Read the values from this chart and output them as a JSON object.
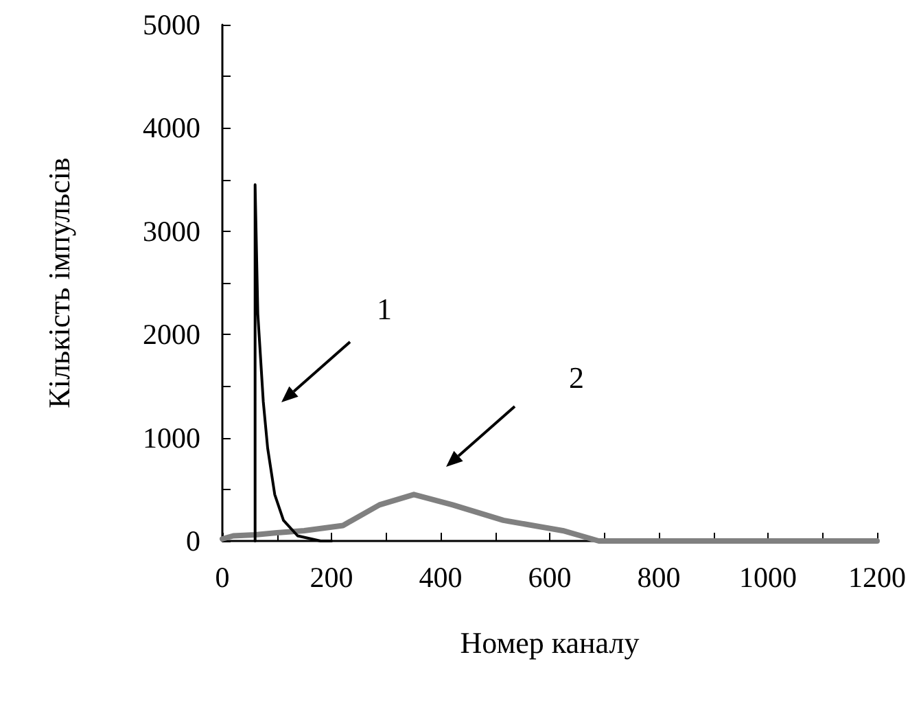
{
  "chart_data": {
    "type": "line",
    "xlabel": "Номер каналу",
    "ylabel": "Кількість імпульсів",
    "xlim": [
      0,
      1200
    ],
    "ylim": [
      0,
      5000
    ],
    "xticks": [
      0,
      {
        "value": 100,
        "label": null
      },
      200,
      {
        "value": 300,
        "label": null
      },
      400,
      {
        "value": 500,
        "label": null
      },
      600,
      {
        "value": 700,
        "label": null
      },
      800,
      {
        "value": 900,
        "label": null
      },
      1000,
      {
        "value": 1100,
        "label": null
      },
      1200
    ],
    "yticks": [
      0,
      {
        "value": 500,
        "label": null
      },
      1000,
      {
        "value": 1500,
        "label": null
      },
      2000,
      {
        "value": 2500,
        "label": null
      },
      3000,
      {
        "value": 3500,
        "label": null
      },
      4000,
      {
        "value": 4500,
        "label": null
      },
      5000
    ],
    "marker": "none",
    "line_style": "solid",
    "series": [
      {
        "color": "#808080",
        "x": [
          0,
          20,
          60,
          100,
          150,
          221,
          288,
          351,
          422,
          515,
          624,
          690,
          800,
          1000,
          1200
        ],
        "values": [
          20,
          50,
          60,
          80,
          100,
          150,
          350,
          450,
          350,
          200,
          100,
          0,
          0,
          0,
          0
        ]
      },
      {
        "color": "#000000",
        "x": [
          60,
          60,
          65,
          75,
          83,
          96,
          112,
          138,
          180,
          200
        ],
        "values": [
          0,
          3450,
          2200,
          1350,
          900,
          450,
          200,
          50,
          0,
          0
        ]
      }
    ],
    "annotations": [
      "1",
      "2"
    ]
  }
}
